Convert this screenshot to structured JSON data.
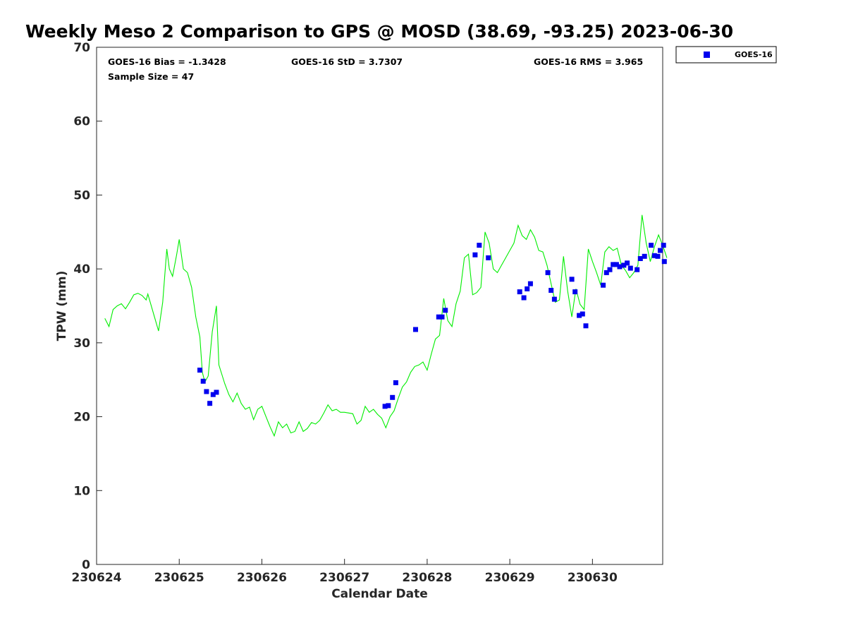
{
  "chart_data": {
    "type": "line",
    "title": "Weekly Meso 2 Comparison to GPS @ MOSD (38.69, -93.25) 2023-06-30",
    "xlabel": "Calendar Date",
    "ylabel": "TPW (mm)",
    "xlim": [
      0,
      6.85
    ],
    "ylim": [
      0,
      70
    ],
    "xticks": [
      0,
      1,
      2,
      3,
      4,
      5,
      6
    ],
    "xtick_labels": [
      "230624",
      "230625",
      "230626",
      "230627",
      "230628",
      "230629",
      "230630"
    ],
    "yticks": [
      0,
      10,
      20,
      30,
      40,
      50,
      60,
      70
    ],
    "grid": false,
    "legend_position": "top-right-outside",
    "stats": {
      "bias": "GOES-16 Bias = -1.3428",
      "std": "GOES-16 StD = 3.7307",
      "rms": "GOES-16 RMS = 3.965",
      "sample": "Sample Size = 47"
    },
    "series": [
      {
        "name": "GOES-16",
        "kind": "scatter",
        "color": "#0000ee",
        "points": [
          [
            1.25,
            26.3
          ],
          [
            1.29,
            24.8
          ],
          [
            1.33,
            23.4
          ],
          [
            1.37,
            21.8
          ],
          [
            1.41,
            23.0
          ],
          [
            1.45,
            23.3
          ],
          [
            3.49,
            21.4
          ],
          [
            3.53,
            21.5
          ],
          [
            3.58,
            22.6
          ],
          [
            3.62,
            24.6
          ],
          [
            3.86,
            31.8
          ],
          [
            4.14,
            33.5
          ],
          [
            4.18,
            33.5
          ],
          [
            4.22,
            34.4
          ],
          [
            4.58,
            41.9
          ],
          [
            4.63,
            43.2
          ],
          [
            4.74,
            41.5
          ],
          [
            5.12,
            36.9
          ],
          [
            5.17,
            36.1
          ],
          [
            5.21,
            37.3
          ],
          [
            5.25,
            38.0
          ],
          [
            5.46,
            39.5
          ],
          [
            5.5,
            37.1
          ],
          [
            5.54,
            35.9
          ],
          [
            5.75,
            38.6
          ],
          [
            5.79,
            36.9
          ],
          [
            5.84,
            33.7
          ],
          [
            5.88,
            33.9
          ],
          [
            5.92,
            32.3
          ],
          [
            6.13,
            37.8
          ],
          [
            6.17,
            39.5
          ],
          [
            6.21,
            39.9
          ],
          [
            6.25,
            40.6
          ],
          [
            6.29,
            40.6
          ],
          [
            6.33,
            40.3
          ],
          [
            6.38,
            40.5
          ],
          [
            6.42,
            40.8
          ],
          [
            6.46,
            40.1
          ],
          [
            6.54,
            39.9
          ],
          [
            6.58,
            41.4
          ],
          [
            6.63,
            41.7
          ],
          [
            6.71,
            43.2
          ],
          [
            6.75,
            41.8
          ],
          [
            6.79,
            41.7
          ],
          [
            6.82,
            42.5
          ],
          [
            6.86,
            43.2
          ],
          [
            6.87,
            41.0
          ]
        ]
      },
      {
        "name": "GPS",
        "kind": "line",
        "color": "#00ee00",
        "points": [
          [
            0.1,
            33.3
          ],
          [
            0.15,
            32.2
          ],
          [
            0.2,
            34.5
          ],
          [
            0.25,
            35.0
          ],
          [
            0.3,
            35.3
          ],
          [
            0.35,
            34.6
          ],
          [
            0.4,
            35.5
          ],
          [
            0.45,
            36.5
          ],
          [
            0.5,
            36.7
          ],
          [
            0.55,
            36.4
          ],
          [
            0.6,
            35.8
          ],
          [
            0.62,
            36.6
          ],
          [
            0.7,
            33.5
          ],
          [
            0.75,
            31.6
          ],
          [
            0.8,
            35.5
          ],
          [
            0.85,
            42.7
          ],
          [
            0.88,
            40.0
          ],
          [
            0.92,
            39.0
          ],
          [
            0.97,
            42.0
          ],
          [
            1.0,
            44.0
          ],
          [
            1.05,
            40.0
          ],
          [
            1.1,
            39.5
          ],
          [
            1.15,
            37.5
          ],
          [
            1.2,
            33.5
          ],
          [
            1.25,
            30.8
          ],
          [
            1.28,
            26.0
          ],
          [
            1.31,
            24.7
          ],
          [
            1.35,
            25.5
          ],
          [
            1.4,
            31.5
          ],
          [
            1.45,
            35.0
          ],
          [
            1.48,
            27.0
          ],
          [
            1.55,
            24.5
          ],
          [
            1.6,
            23.0
          ],
          [
            1.65,
            22.0
          ],
          [
            1.7,
            23.2
          ],
          [
            1.75,
            21.8
          ],
          [
            1.8,
            21.0
          ],
          [
            1.85,
            21.3
          ],
          [
            1.9,
            19.6
          ],
          [
            1.95,
            21.0
          ],
          [
            2.0,
            21.4
          ],
          [
            2.05,
            20.0
          ],
          [
            2.1,
            18.6
          ],
          [
            2.15,
            17.4
          ],
          [
            2.2,
            19.3
          ],
          [
            2.25,
            18.5
          ],
          [
            2.3,
            19.0
          ],
          [
            2.35,
            17.8
          ],
          [
            2.4,
            18.0
          ],
          [
            2.45,
            19.3
          ],
          [
            2.5,
            18.0
          ],
          [
            2.55,
            18.4
          ],
          [
            2.6,
            19.2
          ],
          [
            2.65,
            19.0
          ],
          [
            2.7,
            19.5
          ],
          [
            2.75,
            20.5
          ],
          [
            2.8,
            21.6
          ],
          [
            2.85,
            20.8
          ],
          [
            2.9,
            21.0
          ],
          [
            2.95,
            20.6
          ],
          [
            3.0,
            20.6
          ],
          [
            3.05,
            20.5
          ],
          [
            3.1,
            20.4
          ],
          [
            3.15,
            19.0
          ],
          [
            3.2,
            19.5
          ],
          [
            3.25,
            21.4
          ],
          [
            3.3,
            20.6
          ],
          [
            3.35,
            21.0
          ],
          [
            3.4,
            20.3
          ],
          [
            3.45,
            19.8
          ],
          [
            3.5,
            18.5
          ],
          [
            3.55,
            20.0
          ],
          [
            3.6,
            20.8
          ],
          [
            3.65,
            22.5
          ],
          [
            3.7,
            24.0
          ],
          [
            3.75,
            24.7
          ],
          [
            3.8,
            26.0
          ],
          [
            3.85,
            26.8
          ],
          [
            3.9,
            27.0
          ],
          [
            3.95,
            27.4
          ],
          [
            4.0,
            26.3
          ],
          [
            4.05,
            28.5
          ],
          [
            4.1,
            30.5
          ],
          [
            4.15,
            31.0
          ],
          [
            4.2,
            36.0
          ],
          [
            4.25,
            33.0
          ],
          [
            4.3,
            32.2
          ],
          [
            4.35,
            35.3
          ],
          [
            4.4,
            37.0
          ],
          [
            4.45,
            41.5
          ],
          [
            4.5,
            42.0
          ],
          [
            4.55,
            36.5
          ],
          [
            4.6,
            36.8
          ],
          [
            4.65,
            37.5
          ],
          [
            4.7,
            45.0
          ],
          [
            4.75,
            43.5
          ],
          [
            4.8,
            40.0
          ],
          [
            4.85,
            39.5
          ],
          [
            4.9,
            40.5
          ],
          [
            4.95,
            41.5
          ],
          [
            5.0,
            42.5
          ],
          [
            5.05,
            43.5
          ],
          [
            5.1,
            45.9
          ],
          [
            5.15,
            44.5
          ],
          [
            5.2,
            44.0
          ],
          [
            5.25,
            45.3
          ],
          [
            5.3,
            44.3
          ],
          [
            5.35,
            42.5
          ],
          [
            5.4,
            42.3
          ],
          [
            5.45,
            40.5
          ],
          [
            5.5,
            38.0
          ],
          [
            5.55,
            35.5
          ],
          [
            5.6,
            35.8
          ],
          [
            5.65,
            41.7
          ],
          [
            5.7,
            37.0
          ],
          [
            5.75,
            33.5
          ],
          [
            5.8,
            37.3
          ],
          [
            5.85,
            35.2
          ],
          [
            5.9,
            34.5
          ],
          [
            5.95,
            42.7
          ],
          [
            6.0,
            41.0
          ],
          [
            6.05,
            39.5
          ],
          [
            6.1,
            37.8
          ],
          [
            6.15,
            42.3
          ],
          [
            6.2,
            43.0
          ],
          [
            6.25,
            42.5
          ],
          [
            6.3,
            42.8
          ],
          [
            6.35,
            40.5
          ],
          [
            6.4,
            39.8
          ],
          [
            6.45,
            38.8
          ],
          [
            6.5,
            39.5
          ],
          [
            6.55,
            40.5
          ],
          [
            6.6,
            47.3
          ],
          [
            6.65,
            43.5
          ],
          [
            6.7,
            41.0
          ],
          [
            6.75,
            43.0
          ],
          [
            6.8,
            44.6
          ],
          [
            6.85,
            43.2
          ],
          [
            6.9,
            41.5
          ]
        ]
      }
    ]
  }
}
